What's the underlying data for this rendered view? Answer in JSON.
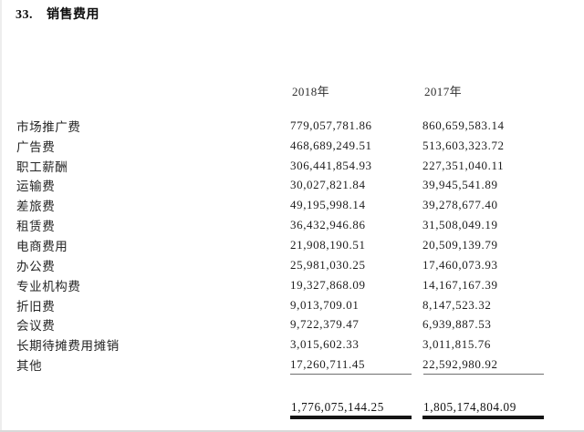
{
  "section": {
    "number": "33.",
    "title": "销售费用"
  },
  "table": {
    "columns": {
      "y2018_label": "2018年",
      "y2017_label": "2017年"
    },
    "rows": [
      {
        "label": "市场推广费",
        "y2018": "779,057,781.86",
        "y2017": "860,659,583.14"
      },
      {
        "label": "广告费",
        "y2018": "468,689,249.51",
        "y2017": "513,603,323.72"
      },
      {
        "label": "职工薪酬",
        "y2018": "306,441,854.93",
        "y2017": "227,351,040.11"
      },
      {
        "label": "运输费",
        "y2018": "30,027,821.84",
        "y2017": "39,945,541.89"
      },
      {
        "label": "差旅费",
        "y2018": "49,195,998.14",
        "y2017": "39,278,677.40"
      },
      {
        "label": "租赁费",
        "y2018": "36,432,946.86",
        "y2017": "31,508,049.19"
      },
      {
        "label": "电商费用",
        "y2018": "21,908,190.51",
        "y2017": "20,509,139.79"
      },
      {
        "label": "办公费",
        "y2018": "25,981,030.25",
        "y2017": "17,460,073.93"
      },
      {
        "label": "专业机构费",
        "y2018": "19,327,868.09",
        "y2017": "14,167,167.39"
      },
      {
        "label": "折旧费",
        "y2018": "9,013,709.01",
        "y2017": "8,147,523.32"
      },
      {
        "label": "会议费",
        "y2018": "9,722,379.47",
        "y2017": "6,939,887.53"
      },
      {
        "label": "长期待摊费用摊销",
        "y2018": "3,015,602.33",
        "y2017": "3,011,815.76"
      },
      {
        "label": "其他",
        "y2018": "17,260,711.45",
        "y2017": "22,592,980.92"
      }
    ],
    "total": {
      "y2018": "1,776,075,144.25",
      "y2017": "1,805,174,804.09"
    }
  },
  "colors": {
    "text": "#222222",
    "thin_rule": "#6e6e6e",
    "thick_rule": "#141414",
    "background": "#ffffff"
  }
}
